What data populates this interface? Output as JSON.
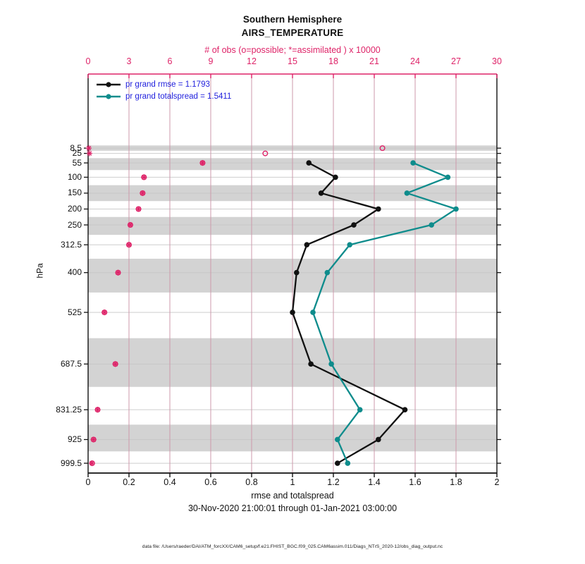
{
  "titles": {
    "line1": "Southern Hemisphere",
    "line2": "AIRS_TEMPERATURE"
  },
  "top_axis": {
    "label": "# of obs (o=possible; *=assimilated ) x 10000",
    "ticks": [
      0,
      3,
      6,
      9,
      12,
      15,
      18,
      21,
      24,
      27,
      30
    ]
  },
  "bottom_axis": {
    "label": "rmse and totalspread",
    "sub_label": "30-Nov-2020 21:00:01 through 01-Jan-2021 03:00:00",
    "ticks": [
      "0",
      "0.2",
      "0.4",
      "0.6",
      "0.8",
      "1",
      "1.2",
      "1.4",
      "1.6",
      "1.8",
      "2"
    ]
  },
  "left_axis": {
    "label": "hPa",
    "levels": [
      "8.5",
      "25",
      "55",
      "100",
      "150",
      "200",
      "250",
      "312.5",
      "400",
      "525",
      "687.5",
      "831.25",
      "925",
      "999.5"
    ]
  },
  "legend": [
    {
      "label": "pr grand rmse = 1.1793",
      "color": "#111111"
    },
    {
      "label": "pr grand totalspread = 1.5411",
      "color": "#0e8c8c"
    }
  ],
  "footer": {
    "data_file": "data file: /Users/raeder/DAI/ATM_forcXX/CAM6_setup/f.e21.FHIST_BGC.f09_025.CAM6assim.011/Diags_NTrS_2020-12/obs_diag_output.nc"
  },
  "colors": {
    "pink": "#de2368",
    "teal": "#0e8c8c",
    "black": "#111111",
    "legend_text": "#2222dd",
    "band": "#d3d3d3",
    "hgrid": "#c6c6c6",
    "vgrid": "#cc9aab"
  },
  "chart_data": {
    "type": "line",
    "title": "Southern Hemisphere AIRS_TEMPERATURE",
    "xlabel": "rmse and totalspread",
    "ylabel": "hPa",
    "xlim_rmse": [
      0,
      2
    ],
    "xlim_obs": [
      0,
      30
    ],
    "grid": true,
    "legend_position": "top-left-inside",
    "levels_hpa": [
      8.5,
      25,
      55,
      100,
      150,
      200,
      250,
      312.5,
      400,
      525,
      687.5,
      831.25,
      925,
      999.5
    ],
    "banded_levels": [
      8.5,
      55,
      150,
      250,
      400,
      687.5,
      925
    ],
    "series": [
      {
        "name": "pr grand rmse",
        "axis": "rmse",
        "marker": "filled-circle",
        "values": [
          null,
          null,
          1.08,
          1.21,
          1.14,
          1.42,
          1.3,
          1.07,
          1.02,
          1.0,
          1.09,
          1.55,
          1.42,
          1.22
        ]
      },
      {
        "name": "pr grand totalspread",
        "axis": "rmse",
        "marker": "filled-circle",
        "values": [
          null,
          null,
          1.59,
          1.76,
          1.56,
          1.8,
          1.68,
          1.28,
          1.17,
          1.1,
          1.19,
          1.33,
          1.22,
          1.27
        ]
      },
      {
        "name": "possible obs x 10000",
        "axis": "obs",
        "marker": "open-circle",
        "values": [
          21.6,
          13.0,
          8.4,
          4.1,
          4.0,
          3.7,
          3.1,
          3.0,
          2.2,
          1.2,
          2.0,
          0.7,
          0.4,
          0.3
        ]
      },
      {
        "name": "assimilated obs x 10000",
        "axis": "obs",
        "marker": "asterisk",
        "values": [
          0.05,
          0.1,
          8.4,
          4.1,
          4.0,
          3.7,
          3.1,
          3.0,
          2.2,
          1.2,
          2.0,
          0.7,
          0.4,
          0.28
        ]
      }
    ]
  }
}
